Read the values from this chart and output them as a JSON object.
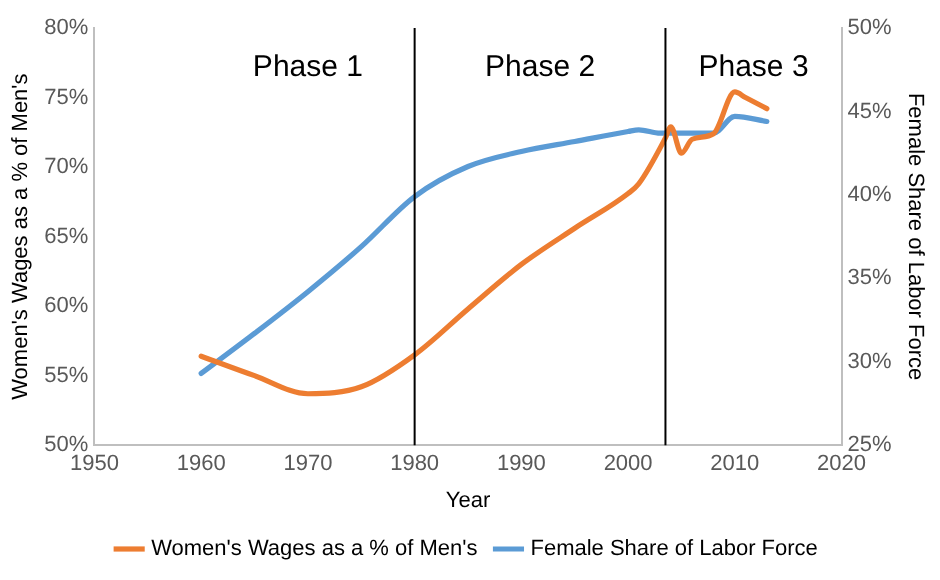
{
  "chart_data": {
    "type": "line",
    "xlabel": "Year",
    "ylabel": "Women's Wages as a % of Men's",
    "y2label": "Female Share of Labor Force",
    "series": [
      {
        "name": "Women's Wages as a % of Men's",
        "color": "#ed7d31",
        "x": [
          1960,
          1965,
          1970,
          1975,
          1980,
          1985,
          1990,
          1995,
          2000,
          2001,
          2003.5,
          2004,
          2005,
          2006,
          2008,
          2010,
          2011,
          2013
        ],
        "values": [
          56.4,
          55,
          53.7,
          54.2,
          56.5,
          59.8,
          63,
          65.6,
          68.1,
          68.8,
          72.1,
          72.9,
          71,
          72,
          72.4,
          75.4,
          75,
          74.2
        ]
      },
      {
        "name": "Female Share of Labor Force",
        "color": "#5b9bd5",
        "axis": "y2",
        "x": [
          1960,
          1965,
          1970,
          1975,
          1980,
          1985,
          1990,
          1995,
          2000,
          2001,
          2003,
          2008,
          2010,
          2013
        ],
        "values": [
          29.3,
          31.7,
          34.2,
          36.9,
          39.9,
          41.7,
          42.6,
          43.2,
          43.8,
          43.9,
          43.7,
          43.7,
          44.7,
          44.4
        ]
      }
    ],
    "xlim": [
      1950,
      2020
    ],
    "xticks": [
      1950,
      1960,
      1970,
      1980,
      1990,
      2000,
      2010,
      2020
    ],
    "ylim": [
      50,
      80
    ],
    "yticks": [
      {
        "value": 50,
        "label": "50%"
      },
      {
        "value": 55,
        "label": "55%"
      },
      {
        "value": 60,
        "label": "60%"
      },
      {
        "value": 65,
        "label": "65%"
      },
      {
        "value": 70,
        "label": "70%"
      },
      {
        "value": 75,
        "label": "75%"
      },
      {
        "value": 80,
        "label": "80%"
      }
    ],
    "y2lim": [
      25,
      50
    ],
    "y2ticks": [
      {
        "value": 25,
        "label": "25%"
      },
      {
        "value": 30,
        "label": "30%"
      },
      {
        "value": 35,
        "label": "35%"
      },
      {
        "value": 40,
        "label": "40%"
      },
      {
        "value": 45,
        "label": "45%"
      },
      {
        "value": 50,
        "label": "50%"
      }
    ],
    "ref_lines": [
      {
        "axis": "x",
        "value": 1980,
        "color": "#000000"
      },
      {
        "axis": "x",
        "value": 2003.5,
        "color": "#000000"
      }
    ],
    "annotations": [
      "Phase 1",
      "Phase 2",
      "Phase 3"
    ],
    "grid": false,
    "legend": "bottom",
    "marker": "none",
    "line_style": "solid"
  }
}
